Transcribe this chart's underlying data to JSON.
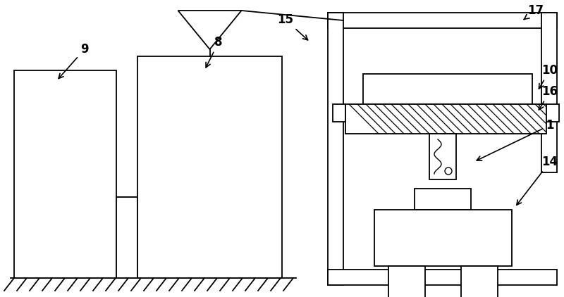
{
  "bg_color": "#ffffff",
  "line_color": "#000000",
  "lw": 1.3,
  "label_fontsize": 12,
  "fig_w": 8.0,
  "fig_h": 4.22,
  "dpi": 100
}
